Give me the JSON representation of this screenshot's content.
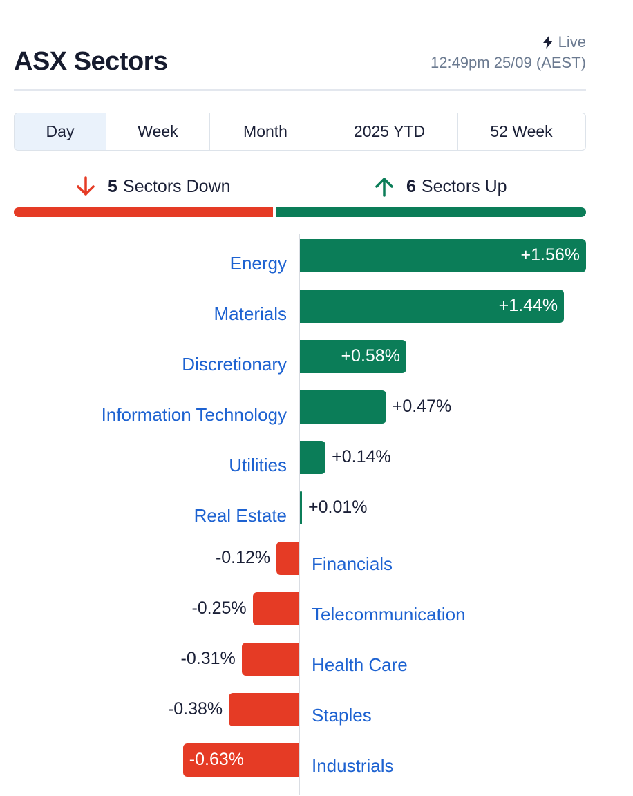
{
  "header": {
    "title": "ASX Sectors",
    "live_label": "Live",
    "timestamp": "12:49pm 25/09 (AEST)"
  },
  "tabs": [
    {
      "label": "Day",
      "active": true
    },
    {
      "label": "Week",
      "active": false
    },
    {
      "label": "Month",
      "active": false
    },
    {
      "label": "2025 YTD",
      "active": false
    },
    {
      "label": "52 Week",
      "active": false
    }
  ],
  "summary": {
    "down_count": "5",
    "down_label": "Sectors Down",
    "up_count": "6",
    "up_label": "Sectors Up",
    "down_color": "#e53b25",
    "up_color": "#0b7d58"
  },
  "chart_data": {
    "type": "bar",
    "orientation": "horizontal",
    "categories": [
      "Energy",
      "Materials",
      "Discretionary",
      "Information Technology",
      "Utilities",
      "Real Estate",
      "Financials",
      "Telecommunication",
      "Health Care",
      "Staples",
      "Industrials"
    ],
    "values": [
      1.56,
      1.44,
      0.58,
      0.47,
      0.14,
      0.01,
      -0.12,
      -0.25,
      -0.31,
      -0.38,
      -0.63
    ],
    "value_labels": [
      "+1.56%",
      "+1.44%",
      "+0.58%",
      "+0.47%",
      "+0.14%",
      "+0.01%",
      "-0.12%",
      "-0.25%",
      "-0.31%",
      "-0.38%",
      "-0.63%"
    ],
    "positive_color": "#0b7d58",
    "negative_color": "#e53b25",
    "xlim": [
      -1.1,
      1.56
    ],
    "grid": false
  }
}
